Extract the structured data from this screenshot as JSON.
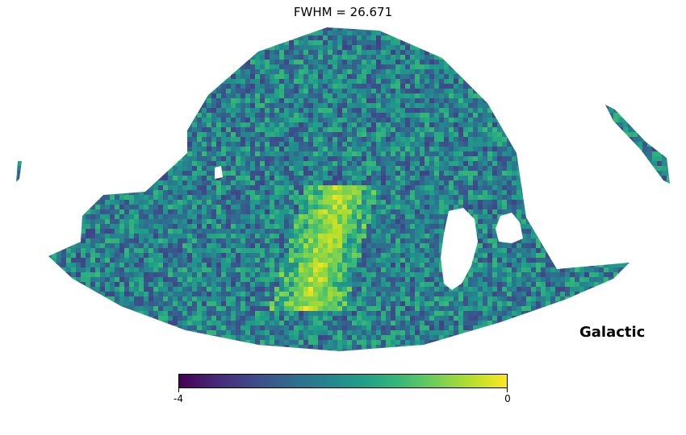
{
  "chart_data": {
    "type": "heatmap",
    "title": "FWHM = 26.671",
    "projection": "mollweide",
    "coord_label": "Galactic",
    "colormap": "viridis",
    "colorbar": {
      "min": -4,
      "max": 0,
      "ticks": [
        "-4",
        "0"
      ]
    },
    "background_color": "#ffffff",
    "masked_color": "#ffffff",
    "colormap_stops": [
      "#440154",
      "#482878",
      "#3e4989",
      "#31688e",
      "#26828e",
      "#1f9e89",
      "#35b779",
      "#6ece58",
      "#b5de2b",
      "#fde725"
    ]
  }
}
